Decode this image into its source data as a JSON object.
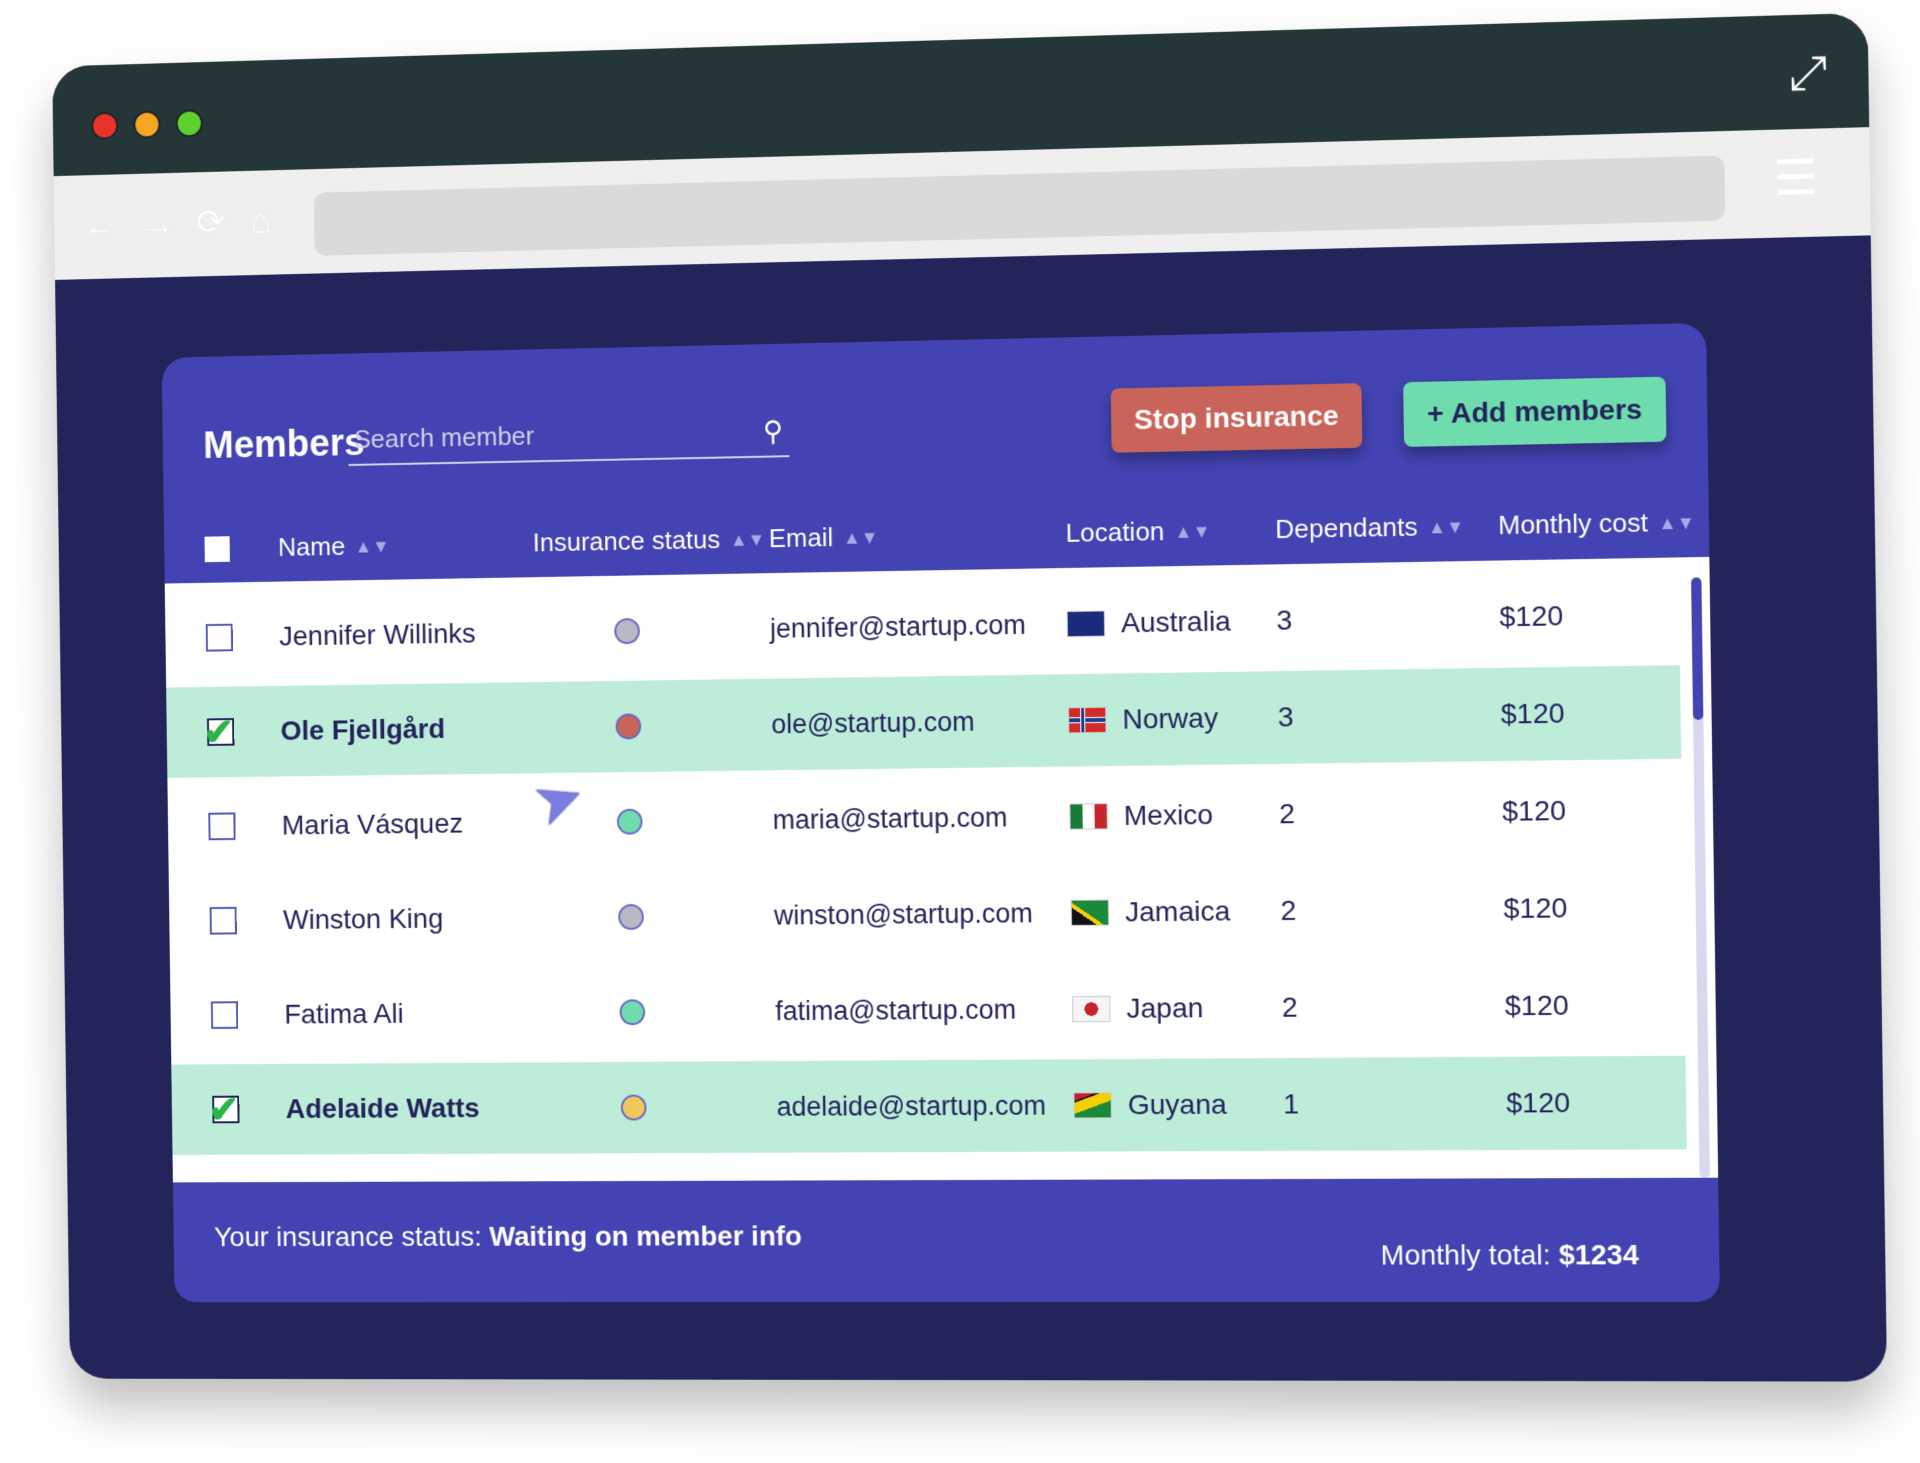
{
  "window": {
    "controls": [
      "close",
      "minimize",
      "maximize"
    ],
    "colors": {
      "close": "#e8322a",
      "minimize": "#f5a623",
      "maximize": "#5fd12f"
    }
  },
  "browser": {
    "back": "←",
    "forward": "→",
    "reload": "⟳",
    "home": "⌂",
    "menu": "☰",
    "expand": "⤢"
  },
  "header": {
    "title": "Members",
    "search_placeholder": "Search member",
    "stop_label": "Stop insurance",
    "add_label": "+ Add members"
  },
  "columns": [
    "Name",
    "Insurance status",
    "Email",
    "Location",
    "Dependants",
    "Monthly cost"
  ],
  "rows": [
    {
      "name": "Jennifer Willinks",
      "selected": false,
      "status_color": "#b9b9c4",
      "email": "jennifer@startup.com",
      "location": "Australia",
      "dependants": "3",
      "cost": "$120"
    },
    {
      "name": "Ole Fjellgård",
      "selected": true,
      "status_color": "#c8645a",
      "email": "ole@startup.com",
      "location": "Norway",
      "dependants": "3",
      "cost": "$120"
    },
    {
      "name": "Maria Vásquez",
      "selected": false,
      "status_color": "#6fdcae",
      "email": "maria@startup.com",
      "location": "Mexico",
      "dependants": "2",
      "cost": "$120"
    },
    {
      "name": "Winston King",
      "selected": false,
      "status_color": "#b9b9c4",
      "email": "winston@startup.com",
      "location": "Jamaica",
      "dependants": "2",
      "cost": "$120"
    },
    {
      "name": "Fatima Ali",
      "selected": false,
      "status_color": "#6fdcae",
      "email": "fatima@startup.com",
      "location": "Japan",
      "dependants": "2",
      "cost": "$120"
    },
    {
      "name": "Adelaide Watts",
      "selected": true,
      "status_color": "#f0c85a",
      "email": "adelaide@startup.com",
      "location": "Guyana",
      "dependants": "1",
      "cost": "$120"
    }
  ],
  "footer": {
    "status_label": "Your insurance status:",
    "status_value": "Waiting on member info",
    "total_label": "Monthly total:",
    "total_value": "$1234"
  }
}
